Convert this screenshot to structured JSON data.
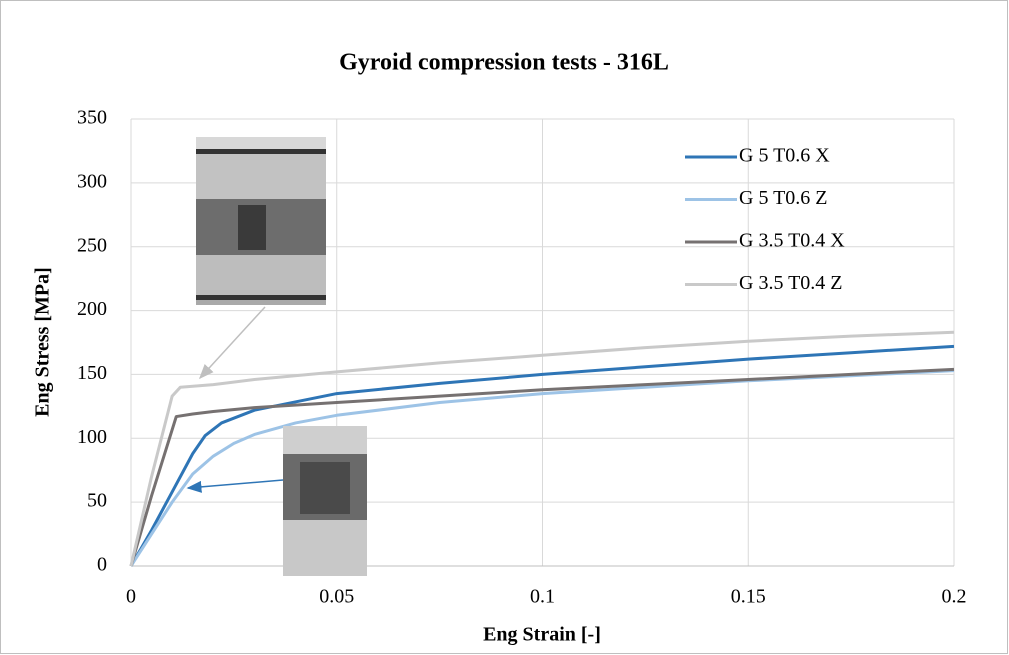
{
  "chart_data": {
    "type": "line",
    "title": "Gyroid compression tests - 316L",
    "x_label": "Eng Strain [-]",
    "y_label": "Eng Stress [MPa]",
    "xlim": [
      0,
      0.2
    ],
    "xticks": [
      0,
      0.05,
      0.1,
      0.15,
      0.2
    ],
    "ylim": [
      0,
      350
    ],
    "yticks": [
      0,
      50,
      100,
      150,
      200,
      250,
      300,
      350
    ],
    "grid": true,
    "series": [
      {
        "name": "G 5 T0.6 X",
        "color": "#2e75b6",
        "x": [
          0,
          0.005,
          0.01,
          0.015,
          0.018,
          0.022,
          0.03,
          0.05,
          0.075,
          0.1,
          0.125,
          0.15,
          0.175,
          0.2
        ],
        "values": [
          0,
          28,
          58,
          88,
          102,
          112,
          122,
          135,
          143,
          150,
          156,
          162,
          167,
          172
        ]
      },
      {
        "name": "G 5 T0.6 Z",
        "color": "#9dc3e6",
        "x": [
          0,
          0.005,
          0.01,
          0.015,
          0.02,
          0.025,
          0.03,
          0.04,
          0.05,
          0.075,
          0.1,
          0.125,
          0.15,
          0.175,
          0.2
        ],
        "values": [
          0,
          25,
          50,
          72,
          86,
          96,
          103,
          112,
          118,
          128,
          135,
          140,
          145,
          149,
          153
        ]
      },
      {
        "name": "G 3.5 T0.4 X",
        "color": "#767171",
        "x": [
          0,
          0.005,
          0.011,
          0.015,
          0.02,
          0.03,
          0.05,
          0.075,
          0.1,
          0.125,
          0.15,
          0.175,
          0.2
        ],
        "values": [
          0,
          55,
          117,
          119,
          121,
          124,
          128,
          133,
          138,
          142,
          146,
          150,
          154
        ]
      },
      {
        "name": "G 3.5 T0.4 Z",
        "color": "#c9c9c9",
        "x": [
          0,
          0.005,
          0.01,
          0.012,
          0.02,
          0.03,
          0.05,
          0.075,
          0.1,
          0.125,
          0.15,
          0.175,
          0.2
        ],
        "values": [
          0,
          70,
          133,
          140,
          142,
          146,
          152,
          159,
          165,
          171,
          176,
          180,
          183
        ]
      }
    ]
  }
}
